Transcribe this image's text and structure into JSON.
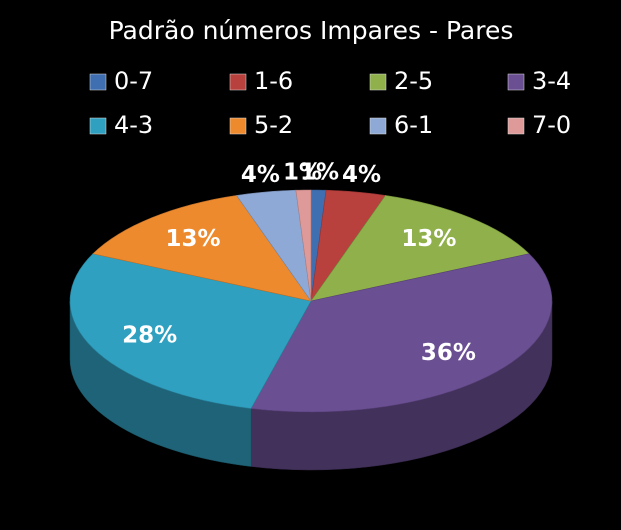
{
  "chart_data": {
    "type": "pie3d",
    "title": "Padrão números Impares - Pares",
    "categories": [
      "0-7",
      "1-6",
      "2-5",
      "3-4",
      "4-3",
      "5-2",
      "6-1",
      "7-0"
    ],
    "values": [
      1,
      4,
      13,
      36,
      28,
      13,
      4,
      1
    ],
    "value_labels": [
      "1%",
      "4%",
      "13%",
      "36%",
      "28%",
      "13%",
      "4%",
      "1%"
    ],
    "colors": [
      "#3f6fb0",
      "#b8403d",
      "#8fb04a",
      "#6b4f93",
      "#30a0c0",
      "#ee8a2e",
      "#8ea9d6",
      "#dd9a98"
    ],
    "legend": "top"
  }
}
